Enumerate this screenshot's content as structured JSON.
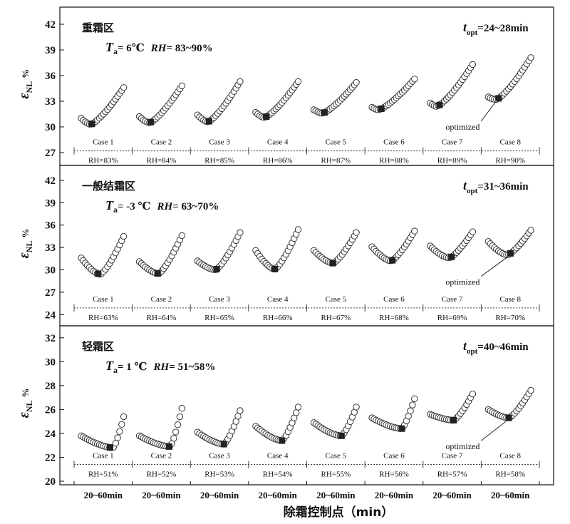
{
  "chart_data": {
    "type": "scatter",
    "xlabel": "除霜控制点（min）",
    "x_tick_labels": [
      "20~60min",
      "20~60min",
      "20~60min",
      "20~60min",
      "20~60min",
      "20~60min",
      "20~60min",
      "20~60min"
    ],
    "optimized_label": "optimized",
    "panels": [
      {
        "region": "重霜区",
        "ta_prefix": "T",
        "ta_sub": "a",
        "ta_value": "= 6℃",
        "rh_prefix": "RH",
        "rh_value": "= 83~90%",
        "topt_prefix": "t",
        "topt_sub": "opt",
        "topt_value": "=24~28min",
        "ylabel_main": "ε",
        "ylabel_sub": "NL",
        "ylabel_unit": "%",
        "ylim": [
          25.5,
          44
        ],
        "yticks": [
          27,
          30,
          33,
          36,
          39,
          42
        ],
        "ref_y": 27.2,
        "series": [
          {
            "case": "Case 1",
            "rh": "RH=83%",
            "start": 31.0,
            "min": 30.3,
            "end": 34.6,
            "tmin": 0.22,
            "opt": 0.25
          },
          {
            "case": "Case 2",
            "rh": "RH=84%",
            "start": 31.2,
            "min": 30.5,
            "end": 34.8,
            "tmin": 0.24,
            "opt": 0.27
          },
          {
            "case": "Case 3",
            "rh": "RH=85%",
            "start": 31.4,
            "min": 30.6,
            "end": 35.3,
            "tmin": 0.24,
            "opt": 0.27
          },
          {
            "case": "Case 4",
            "rh": "RH=86%",
            "start": 31.7,
            "min": 31.1,
            "end": 35.3,
            "tmin": 0.2,
            "opt": 0.25
          },
          {
            "case": "Case 5",
            "rh": "RH=87%",
            "start": 32.0,
            "min": 31.6,
            "end": 35.2,
            "tmin": 0.2,
            "opt": 0.25
          },
          {
            "case": "Case 6",
            "rh": "RH=88%",
            "start": 32.3,
            "min": 32.0,
            "end": 35.6,
            "tmin": 0.15,
            "opt": 0.22
          },
          {
            "case": "Case 7",
            "rh": "RH=89%",
            "start": 32.8,
            "min": 32.4,
            "end": 37.3,
            "tmin": 0.15,
            "opt": 0.22
          },
          {
            "case": "Case 8",
            "rh": "RH=90%",
            "start": 33.5,
            "min": 33.2,
            "end": 38.1,
            "tmin": 0.18,
            "opt": 0.24
          }
        ]
      },
      {
        "region": "一般结霜区",
        "ta_prefix": "T",
        "ta_sub": "a",
        "ta_value": "= -3 ℃",
        "rh_prefix": "RH",
        "rh_value": "= 63~70%",
        "topt_prefix": "t",
        "topt_sub": "opt",
        "topt_value": "=31~36min",
        "ylabel_main": "ε",
        "ylabel_sub": "NL",
        "ylabel_unit": "%",
        "ylim": [
          22.5,
          44
        ],
        "yticks": [
          24,
          27,
          30,
          33,
          36,
          39,
          42
        ],
        "ref_y": 24.9,
        "series": [
          {
            "case": "Case 1",
            "rh": "RH=63%",
            "start": 31.6,
            "min": 29.4,
            "end": 34.5,
            "tmin": 0.45,
            "opt": 0.4
          },
          {
            "case": "Case 2",
            "rh": "RH=64%",
            "start": 31.1,
            "min": 29.5,
            "end": 34.6,
            "tmin": 0.45,
            "opt": 0.43
          },
          {
            "case": "Case 3",
            "rh": "RH=65%",
            "start": 31.2,
            "min": 30.0,
            "end": 35.0,
            "tmin": 0.42,
            "opt": 0.45
          },
          {
            "case": "Case 4",
            "rh": "RH=66%",
            "start": 32.6,
            "min": 30.1,
            "end": 35.4,
            "tmin": 0.45,
            "opt": 0.45
          },
          {
            "case": "Case 5",
            "rh": "RH=67%",
            "start": 32.6,
            "min": 30.9,
            "end": 35.0,
            "tmin": 0.45,
            "opt": 0.45
          },
          {
            "case": "Case 6",
            "rh": "RH=68%",
            "start": 33.1,
            "min": 31.2,
            "end": 35.2,
            "tmin": 0.45,
            "opt": 0.48
          },
          {
            "case": "Case 7",
            "rh": "RH=69%",
            "start": 33.2,
            "min": 31.6,
            "end": 35.1,
            "tmin": 0.45,
            "opt": 0.5
          },
          {
            "case": "Case 8",
            "rh": "RH=70%",
            "start": 33.8,
            "min": 32.0,
            "end": 35.3,
            "tmin": 0.45,
            "opt": 0.52
          }
        ]
      },
      {
        "region": "轻霜区",
        "ta_prefix": "T",
        "ta_sub": "a",
        "ta_value": "= 1 ℃",
        "rh_prefix": "RH",
        "rh_value": "= 51~58%",
        "topt_prefix": "t",
        "topt_sub": "opt",
        "topt_value": "=40~46min",
        "ylabel_main": "ε",
        "ylabel_sub": "NL",
        "ylabel_unit": "%",
        "ylim": [
          19.7,
          33
        ],
        "yticks": [
          20,
          22,
          24,
          26,
          28,
          30,
          32
        ],
        "ref_y": 21.4,
        "series": [
          {
            "case": "Case 1",
            "rh": "RH=51%",
            "start": 23.8,
            "min": 22.8,
            "end": 25.4,
            "tmin": 0.75,
            "opt": 0.68
          },
          {
            "case": "Case 2",
            "rh": "RH=52%",
            "start": 23.8,
            "min": 22.9,
            "end": 26.1,
            "tmin": 0.72,
            "opt": 0.7
          },
          {
            "case": "Case 3",
            "rh": "RH=53%",
            "start": 24.1,
            "min": 23.1,
            "end": 25.9,
            "tmin": 0.62,
            "opt": 0.62
          },
          {
            "case": "Case 4",
            "rh": "RH=54%",
            "start": 24.6,
            "min": 23.4,
            "end": 26.2,
            "tmin": 0.62,
            "opt": 0.62
          },
          {
            "case": "Case 5",
            "rh": "RH=55%",
            "start": 24.9,
            "min": 23.8,
            "end": 26.2,
            "tmin": 0.65,
            "opt": 0.65
          },
          {
            "case": "Case 6",
            "rh": "RH=56%",
            "start": 25.3,
            "min": 24.4,
            "end": 26.9,
            "tmin": 0.7,
            "opt": 0.7
          },
          {
            "case": "Case 7",
            "rh": "RH=57%",
            "start": 25.6,
            "min": 25.1,
            "end": 27.3,
            "tmin": 0.55,
            "opt": 0.55
          },
          {
            "case": "Case 8",
            "rh": "RH=58%",
            "start": 26.0,
            "min": 25.3,
            "end": 27.6,
            "tmin": 0.48,
            "opt": 0.48
          }
        ]
      }
    ]
  }
}
